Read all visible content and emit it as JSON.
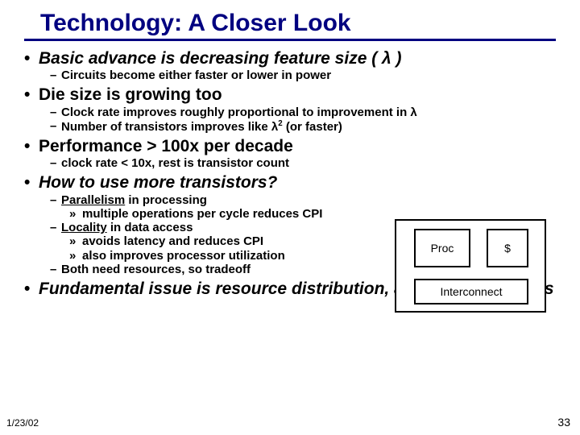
{
  "title": "Technology: A Closer Look",
  "colors": {
    "title": "#000080",
    "rule": "#000080",
    "text": "#000000",
    "background": "#ffffff",
    "border": "#000000"
  },
  "bullets": {
    "b1": "Basic advance is decreasing feature size ( λ )",
    "b1_1": "Circuits become either faster or lower in power",
    "b2": "Die size is growing too",
    "b2_1_a": "Clock rate improves roughly proportional to improvement in ",
    "b2_1_b": "λ",
    "b2_2_a": "Number of transistors improves like ",
    "b2_2_b": "λ",
    "b2_2_sup": "2",
    "b2_2_c": " (or faster)",
    "b3": "Performance > 100x per decade",
    "b3_1": "clock rate < 10x, rest is transistor count",
    "b4": "How to use more transistors?",
    "b4_1_a": "Parallelism",
    "b4_1_b": " in processing",
    "b4_1_1": "multiple operations per cycle reduces CPI",
    "b4_2_a": "Locality",
    "b4_2_b": " in data access",
    "b4_2_1": "avoids latency and reduces CPI",
    "b4_2_2": "also improves processor utilization",
    "b4_3": "Both need resources, so tradeoff",
    "b5": "Fundamental issue is resource distribution, as in uniprocessors"
  },
  "diagram": {
    "proc": "Proc",
    "cache": "$",
    "interconnect": "Interconnect"
  },
  "footer": {
    "date": "1/23/02",
    "page": "33"
  }
}
